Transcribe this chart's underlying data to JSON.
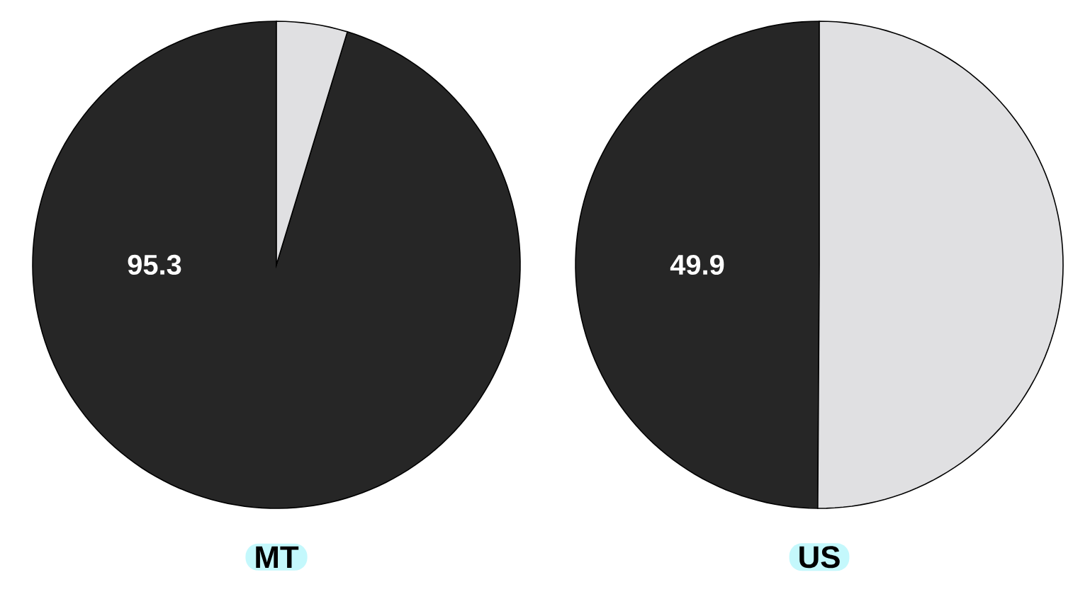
{
  "chart_data": [
    {
      "type": "pie",
      "title": "MT",
      "categories": [
        null,
        null
      ],
      "values": [
        95.3,
        4.7
      ],
      "colors": [
        "#262626",
        "#e0e0e2"
      ],
      "value_labels": [
        "95.3",
        null
      ]
    },
    {
      "type": "pie",
      "title": "US",
      "categories": [
        null,
        null
      ],
      "values": [
        49.9,
        50.1
      ],
      "colors": [
        "#262626",
        "#e0e0e2"
      ],
      "value_labels": [
        "49.9",
        null
      ]
    }
  ]
}
